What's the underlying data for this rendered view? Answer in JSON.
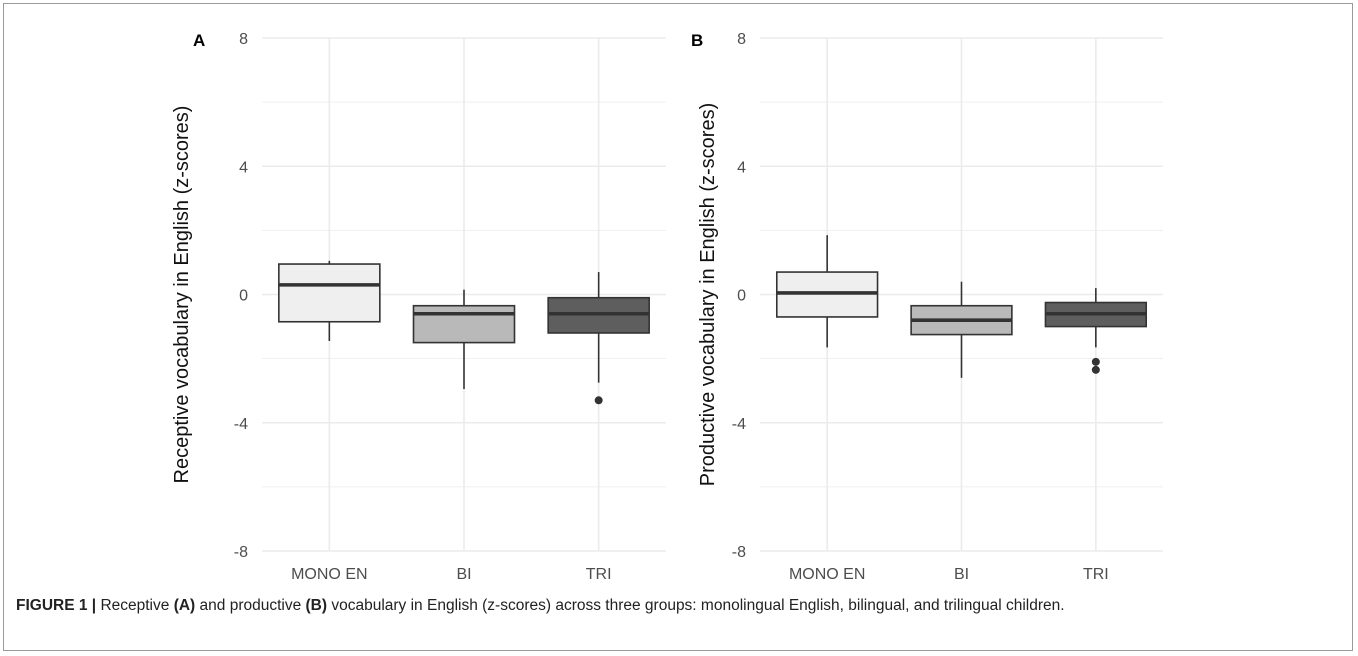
{
  "caption": {
    "label": "FIGURE 1 |",
    "parts": [
      {
        "text": " Receptive ",
        "bold": false
      },
      {
        "text": "(A)",
        "bold": true
      },
      {
        "text": " and productive ",
        "bold": false
      },
      {
        "text": "(B)",
        "bold": true
      },
      {
        "text": " vocabulary in English (z-scores) across three groups: monolingual English, bilingual, and trilingual children.",
        "bold": false
      }
    ]
  },
  "colors": {
    "MONO EN": "#efefef",
    "BI": "#b9b9b9",
    "TRI": "#5e5e5e",
    "grid": "#ebebeb",
    "line": "#333333"
  },
  "chart_data": [
    {
      "type": "box",
      "panel_label": "A",
      "ylabel": "Receptive vocabulary in English (z-scores)",
      "categories": [
        "MONO EN",
        "BI",
        "TRI"
      ],
      "ylim": [
        -8,
        8
      ],
      "yticks": [
        -8,
        -4,
        0,
        4,
        8
      ],
      "grid": true,
      "boxes": [
        {
          "group": "MONO EN",
          "whisker_low": -1.45,
          "q1": -0.85,
          "median": 0.3,
          "q3": 0.95,
          "whisker_high": 1.05,
          "outliers": []
        },
        {
          "group": "BI",
          "whisker_low": -2.95,
          "q1": -1.5,
          "median": -0.6,
          "q3": -0.35,
          "whisker_high": 0.15,
          "outliers": []
        },
        {
          "group": "TRI",
          "whisker_low": -2.75,
          "q1": -1.2,
          "median": -0.6,
          "q3": -0.1,
          "whisker_high": 0.7,
          "outliers": [
            -3.3
          ]
        }
      ]
    },
    {
      "type": "box",
      "panel_label": "B",
      "ylabel": "Productive vocabulary in English (z-scores)",
      "categories": [
        "MONO EN",
        "BI",
        "TRI"
      ],
      "ylim": [
        -8,
        8
      ],
      "yticks": [
        -8,
        -4,
        0,
        4,
        8
      ],
      "grid": true,
      "boxes": [
        {
          "group": "MONO EN",
          "whisker_low": -1.65,
          "q1": -0.7,
          "median": 0.05,
          "q3": 0.7,
          "whisker_high": 1.85,
          "outliers": []
        },
        {
          "group": "BI",
          "whisker_low": -2.6,
          "q1": -1.25,
          "median": -0.8,
          "q3": -0.35,
          "whisker_high": 0.4,
          "outliers": []
        },
        {
          "group": "TRI",
          "whisker_low": -1.65,
          "q1": -1.0,
          "median": -0.6,
          "q3": -0.25,
          "whisker_high": 0.2,
          "outliers": [
            -2.1,
            -2.35
          ]
        }
      ]
    }
  ]
}
